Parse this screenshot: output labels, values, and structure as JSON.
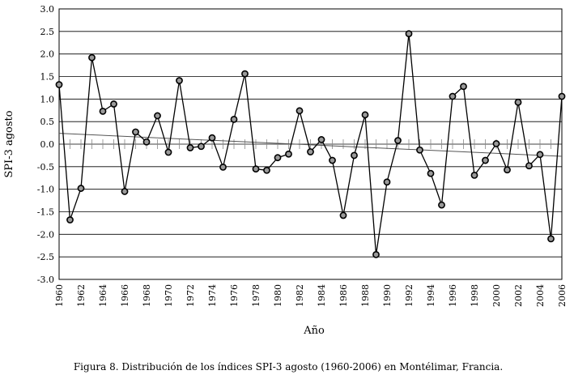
{
  "chart_data": {
    "type": "line",
    "xlabel": "Año",
    "ylabel": "SPI-3 agosto",
    "caption": "Figura 8. Distribución de los índices SPI-3 agosto (1960-2006) en Montélimar, Francia.",
    "xlim": [
      1960,
      2006
    ],
    "ylim": [
      -3.0,
      3.0
    ],
    "x_ticks": [
      "1960",
      "1962",
      "1964",
      "1966",
      "1968",
      "1970",
      "1972",
      "1974",
      "1976",
      "1978",
      "1980",
      "1982",
      "1984",
      "1986",
      "1988",
      "1990",
      "1992",
      "1994",
      "1996",
      "1998",
      "2000",
      "2002",
      "2004",
      "2006"
    ],
    "y_ticks": [
      "3.0",
      "2.5",
      "2.0",
      "1.5",
      "1.0",
      "0.5",
      "0.0",
      "-0.5",
      "-1.0",
      "-1.5",
      "-2.0",
      "-2.5",
      "-3.0"
    ],
    "grid": "horizontal",
    "series": [
      {
        "x": [
          1960,
          1961,
          1962,
          1963,
          1964,
          1965,
          1966,
          1967,
          1968,
          1969,
          1970,
          1971,
          1972,
          1973,
          1974,
          1975,
          1976,
          1977,
          1978,
          1979,
          1980,
          1981,
          1982,
          1983,
          1984,
          1985,
          1986,
          1987,
          1988,
          1989,
          1990,
          1991,
          1992,
          1993,
          1994,
          1995,
          1996,
          1997,
          1998,
          1999,
          2000,
          2001,
          2002,
          2003,
          2004,
          2005,
          2006
        ],
        "values": [
          1.32,
          -1.68,
          -0.98,
          1.92,
          0.73,
          0.89,
          -1.05,
          0.27,
          0.05,
          0.63,
          -0.18,
          1.41,
          -0.08,
          -0.05,
          0.14,
          -0.51,
          0.55,
          1.56,
          -0.55,
          -0.58,
          -0.3,
          -0.22,
          0.74,
          -0.17,
          0.1,
          -0.36,
          -1.58,
          -0.25,
          0.65,
          -2.45,
          -0.84,
          0.08,
          2.45,
          -0.13,
          -0.65,
          -1.35,
          1.06,
          1.28,
          -0.69,
          -0.36,
          0.01,
          -0.57,
          0.93,
          -0.48,
          -0.23,
          -2.1,
          1.06
        ]
      }
    ],
    "trendline": {
      "x": [
        1960,
        2006
      ],
      "values": [
        0.24,
        -0.27
      ]
    },
    "colors": {
      "line": "#000000",
      "marker_fill": "#9a9a9a",
      "marker_stroke": "#000000",
      "grid": "#000000",
      "trend": "#555555",
      "zero_ticks": "#888888"
    }
  }
}
